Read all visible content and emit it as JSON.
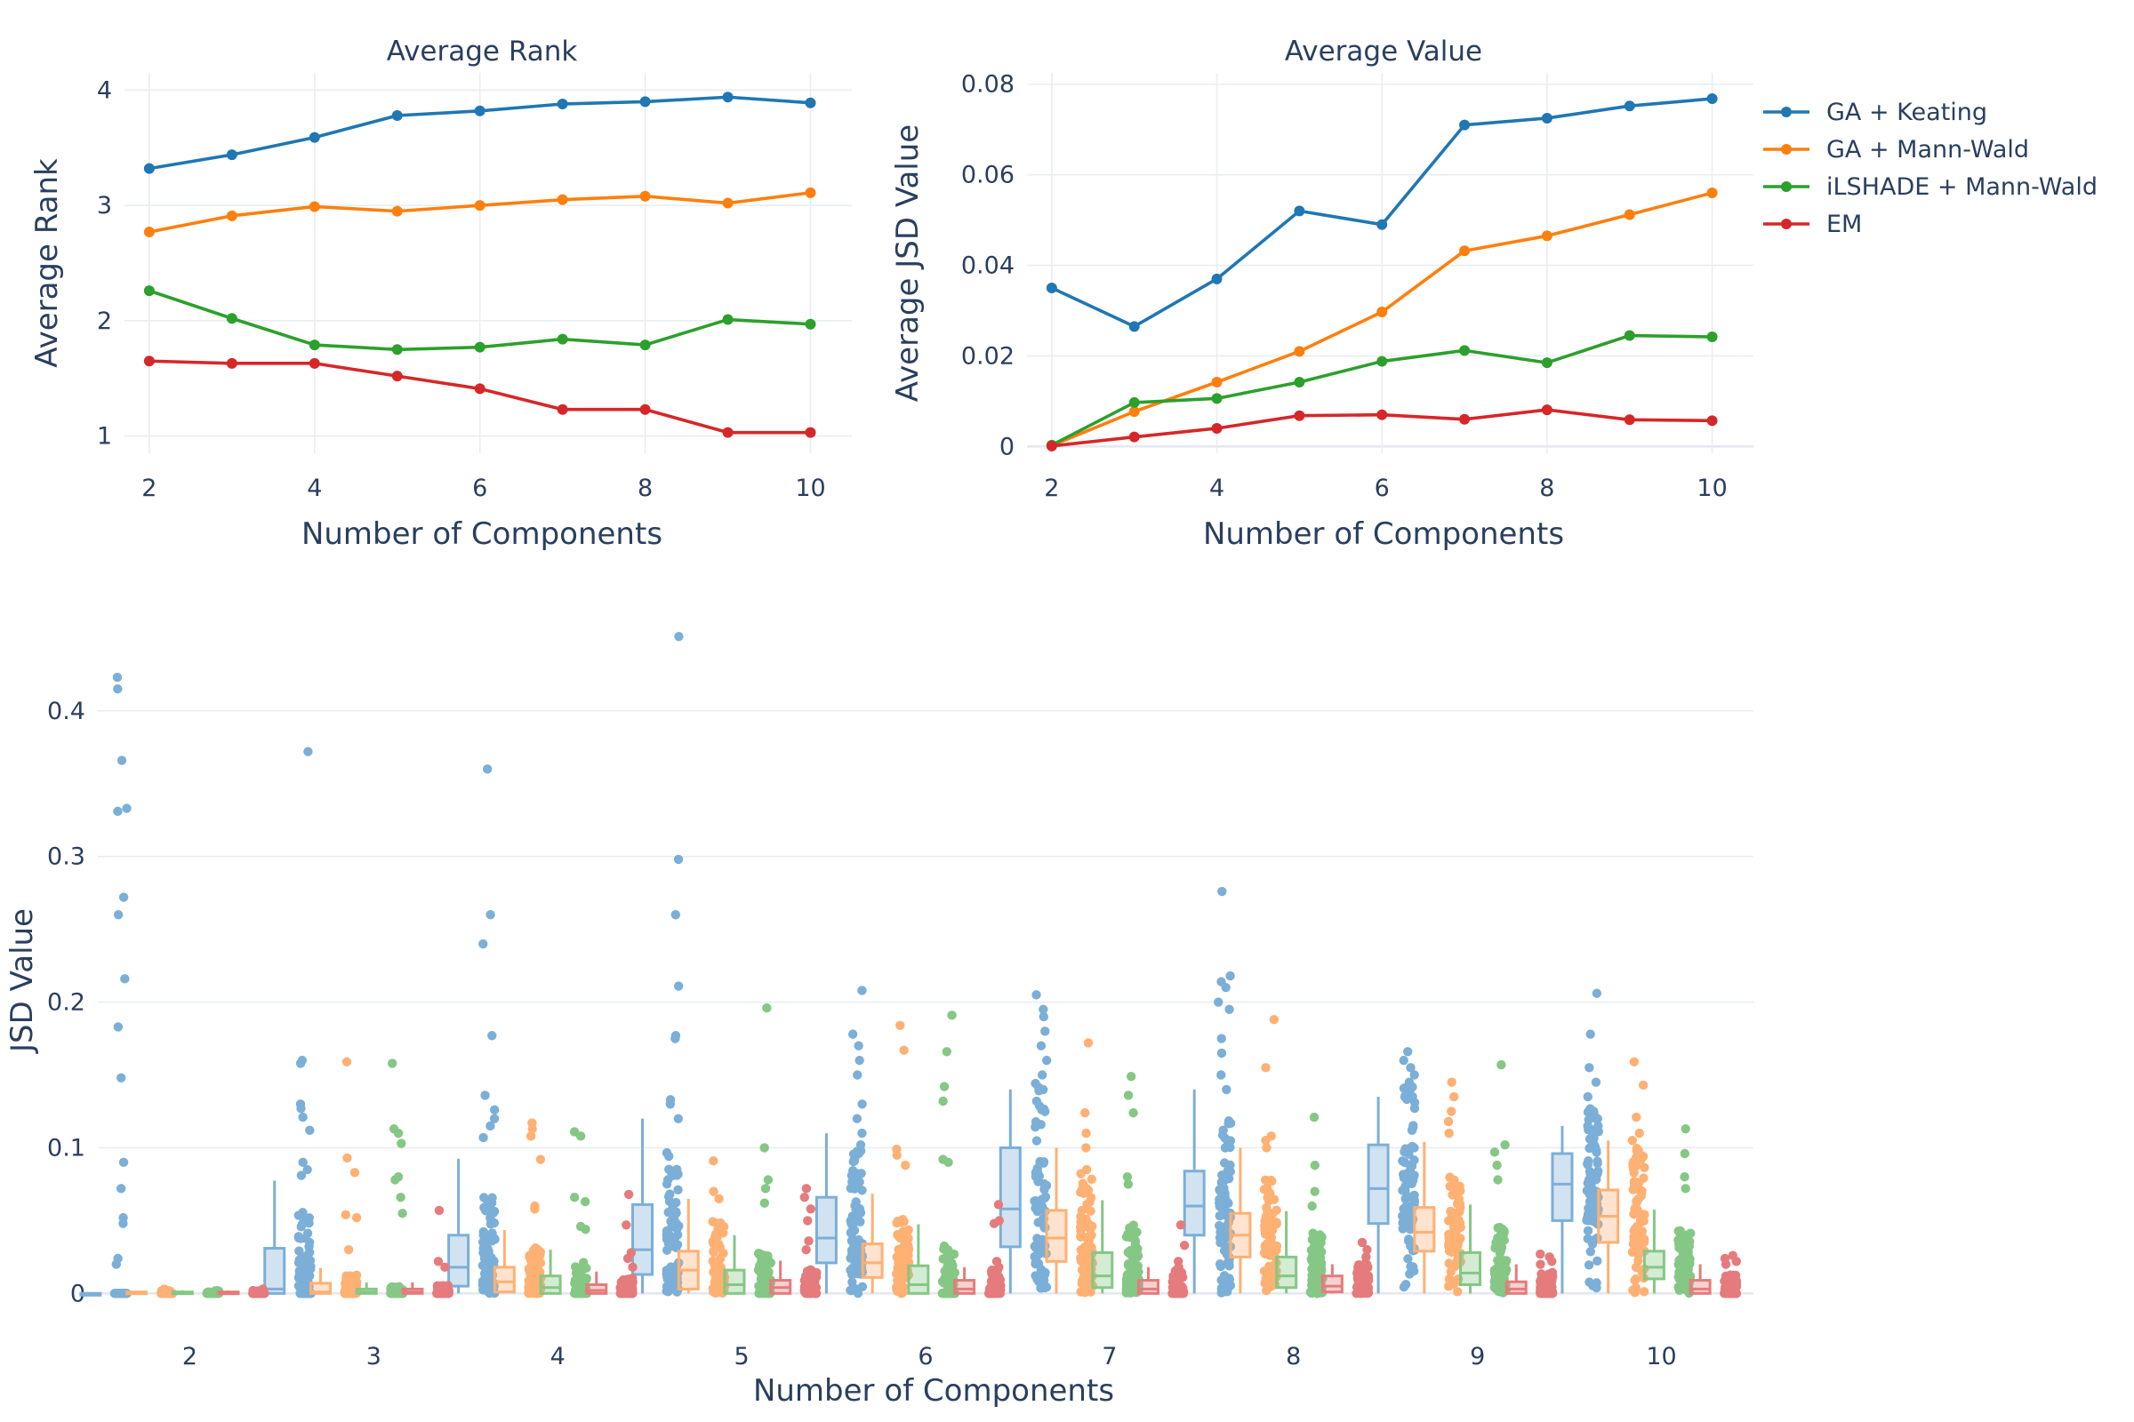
{
  "chart_data": [
    {
      "type": "line",
      "title": "Average Rank",
      "xlabel": "Number of Components",
      "ylabel": "Average Rank",
      "x": [
        2,
        3,
        4,
        5,
        6,
        7,
        8,
        9,
        10
      ],
      "xticks": [
        "2",
        "4",
        "6",
        "8",
        "10"
      ],
      "yticks": [
        "1",
        "2",
        "3",
        "4"
      ],
      "xlim": [
        1.7,
        10.5
      ],
      "ylim": [
        0.85,
        4.15
      ],
      "grid": true,
      "series": [
        {
          "name": "GA + Keating",
          "color": "#1f77b4",
          "values": [
            3.32,
            3.44,
            3.59,
            3.78,
            3.82,
            3.88,
            3.9,
            3.94,
            3.89
          ]
        },
        {
          "name": "GA + Mann-Wald",
          "color": "#ff7f0e",
          "values": [
            2.77,
            2.91,
            2.99,
            2.95,
            3.0,
            3.05,
            3.08,
            3.02,
            3.11
          ]
        },
        {
          "name": "iLSHADE + Mann-Wald",
          "color": "#2ca02c",
          "values": [
            2.26,
            2.02,
            1.79,
            1.75,
            1.77,
            1.84,
            1.79,
            2.01,
            1.97
          ]
        },
        {
          "name": "EM",
          "color": "#d62728",
          "values": [
            1.65,
            1.63,
            1.63,
            1.52,
            1.41,
            1.23,
            1.23,
            1.03,
            1.03
          ]
        }
      ]
    },
    {
      "type": "line",
      "title": "Average Value",
      "xlabel": "Number of Components",
      "ylabel": "Average JSD Value",
      "x": [
        2,
        3,
        4,
        5,
        6,
        7,
        8,
        9,
        10
      ],
      "xticks": [
        "2",
        "4",
        "6",
        "8",
        "10"
      ],
      "yticks": [
        "0",
        "0.02",
        "0.04",
        "0.06",
        "0.08"
      ],
      "xlim": [
        1.7,
        10.5
      ],
      "ylim": [
        -0.0015,
        0.0825
      ],
      "grid": true,
      "legend": "right",
      "series": [
        {
          "name": "GA + Keating",
          "color": "#1f77b4",
          "values": [
            0.035,
            0.0265,
            0.037,
            0.052,
            0.049,
            0.071,
            0.0725,
            0.0752,
            0.0768
          ]
        },
        {
          "name": "GA + Mann-Wald",
          "color": "#ff7f0e",
          "values": [
            0.0002,
            0.0077,
            0.0142,
            0.021,
            0.0297,
            0.0432,
            0.0465,
            0.0512,
            0.056
          ]
        },
        {
          "name": "iLSHADE + Mann-Wald",
          "color": "#2ca02c",
          "values": [
            0.0003,
            0.0097,
            0.0106,
            0.0142,
            0.0188,
            0.0212,
            0.0185,
            0.0245,
            0.0242
          ]
        },
        {
          "name": "EM",
          "color": "#d62728",
          "values": [
            0.0001,
            0.0021,
            0.004,
            0.0068,
            0.007,
            0.006,
            0.0081,
            0.0059,
            0.0057
          ]
        }
      ]
    },
    {
      "type": "box",
      "xlabel": "Number of Components",
      "ylabel": "JSD Value",
      "categories": [
        "2",
        "3",
        "4",
        "5",
        "6",
        "7",
        "8",
        "9",
        "10"
      ],
      "yticks": [
        "0",
        "0.1",
        "0.2",
        "0.3",
        "0.4"
      ],
      "ylim": [
        -0.012,
        0.467
      ],
      "grid": true,
      "series": [
        {
          "name": "GA + Keating",
          "color": "#7bafd7",
          "boxes": [
            [
              0,
              0,
              0
            ],
            [
              0,
              0.003,
              0.031
            ],
            [
              0.005,
              0.018,
              0.04
            ],
            [
              0.013,
              0.03,
              0.061
            ],
            [
              0.021,
              0.038,
              0.066
            ],
            [
              0.032,
              0.058,
              0.1
            ],
            [
              0.04,
              0.06,
              0.084
            ],
            [
              0.048,
              0.072,
              0.102
            ],
            [
              0.05,
              0.075,
              0.096
            ]
          ],
          "outliers": [
            [
              0.423,
              0.415,
              0.366,
              0.333,
              0.331,
              0.272,
              0.26,
              0.216,
              0.183,
              0.148,
              0.09,
              0.072,
              0.052,
              0.048,
              0.024,
              0.02
            ],
            [
              0.372,
              0.16,
              0.158,
              0.13,
              0.127,
              0.121,
              0.112,
              0.09,
              0.085,
              0.081
            ],
            [
              0.36,
              0.26,
              0.24,
              0.177,
              0.136,
              0.126,
              0.12,
              0.115,
              0.107
            ],
            [
              0.451,
              0.298,
              0.26,
              0.211,
              0.177,
              0.175,
              0.133,
              0.13,
              0.12
            ],
            [
              0.208,
              0.178,
              0.17,
              0.16,
              0.15,
              0.13,
              0.12,
              0.11
            ],
            [
              0.205,
              0.195,
              0.19,
              0.18,
              0.17,
              0.16,
              0.15,
              0.14
            ],
            [
              0.276,
              0.218,
              0.214,
              0.21,
              0.2,
              0.195,
              0.175,
              0.165,
              0.15,
              0.14
            ],
            [
              0.166,
              0.16,
              0.155,
              0.15,
              0.145,
              0.14,
              0.135
            ],
            [
              0.206,
              0.178,
              0.155,
              0.145,
              0.135,
              0.125,
              0.115
            ]
          ]
        },
        {
          "name": "GA + Mann-Wald",
          "color": "#ffb073",
          "boxes": [
            [
              0,
              0,
              0.001
            ],
            [
              0,
              0.001,
              0.007
            ],
            [
              0.001,
              0.008,
              0.018
            ],
            [
              0.003,
              0.016,
              0.029
            ],
            [
              0.011,
              0.021,
              0.034
            ],
            [
              0.022,
              0.038,
              0.057
            ],
            [
              0.025,
              0.04,
              0.055
            ],
            [
              0.029,
              0.042,
              0.059
            ],
            [
              0.035,
              0.053,
              0.071
            ]
          ],
          "outliers": [
            [
              0.003,
              0.002
            ],
            [
              0.159,
              0.093,
              0.083,
              0.054,
              0.052,
              0.03
            ],
            [
              0.117,
              0.113,
              0.108,
              0.092,
              0.06,
              0.058
            ],
            [
              0.091,
              0.07,
              0.065
            ],
            [
              0.184,
              0.167,
              0.099,
              0.095,
              0.088
            ],
            [
              0.172,
              0.124,
              0.11,
              0.1
            ],
            [
              0.188,
              0.155,
              0.108,
              0.105,
              0.1
            ],
            [
              0.145,
              0.135,
              0.125,
              0.118,
              0.11
            ],
            [
              0.159,
              0.143,
              0.121,
              0.11,
              0.105
            ]
          ]
        },
        {
          "name": "iLSHADE + Mann-Wald",
          "color": "#85c785",
          "boxes": [
            [
              0,
              0,
              0.001
            ],
            [
              0,
              0.001,
              0.003
            ],
            [
              0,
              0.004,
              0.012
            ],
            [
              0,
              0.006,
              0.016
            ],
            [
              0,
              0.006,
              0.019
            ],
            [
              0.004,
              0.012,
              0.028
            ],
            [
              0.004,
              0.012,
              0.025
            ],
            [
              0.006,
              0.014,
              0.028
            ],
            [
              0.01,
              0.018,
              0.029
            ]
          ],
          "outliers": [
            [
              0.002
            ],
            [
              0.158,
              0.113,
              0.11,
              0.103,
              0.08,
              0.078,
              0.066,
              0.055
            ],
            [
              0.111,
              0.108,
              0.066,
              0.063,
              0.046,
              0.044
            ],
            [
              0.196,
              0.1,
              0.078,
              0.072,
              0.062
            ],
            [
              0.191,
              0.166,
              0.142,
              0.132,
              0.092,
              0.09
            ],
            [
              0.149,
              0.136,
              0.124,
              0.08,
              0.075
            ],
            [
              0.121,
              0.088,
              0.07,
              0.06
            ],
            [
              0.157,
              0.102,
              0.097,
              0.088,
              0.078
            ],
            [
              0.113,
              0.096,
              0.08,
              0.072
            ]
          ]
        },
        {
          "name": "EM",
          "color": "#e57b7c",
          "boxes": [
            [
              0,
              0,
              0.001
            ],
            [
              0,
              0.001,
              0.003
            ],
            [
              0,
              0.002,
              0.006
            ],
            [
              0,
              0.004,
              0.009
            ],
            [
              0,
              0.003,
              0.009
            ],
            [
              0,
              0.003,
              0.009
            ],
            [
              0.001,
              0.005,
              0.012
            ],
            [
              0,
              0.003,
              0.008
            ],
            [
              0,
              0.003,
              0.009
            ]
          ],
          "outliers": [
            [
              0.003,
              0.002
            ],
            [
              0.057,
              0.022,
              0.018
            ],
            [
              0.068,
              0.047,
              0.028,
              0.024,
              0.018
            ],
            [
              0.072,
              0.066,
              0.058,
              0.05,
              0.036,
              0.03
            ],
            [
              0.061,
              0.05,
              0.048,
              0.022,
              0.018
            ],
            [
              0.047,
              0.033,
              0.022,
              0.018
            ],
            [
              0.035,
              0.03,
              0.025,
              0.02
            ],
            [
              0.027,
              0.025,
              0.022,
              0.02
            ],
            [
              0.026,
              0.024,
              0.022,
              0.02
            ]
          ]
        }
      ]
    }
  ]
}
